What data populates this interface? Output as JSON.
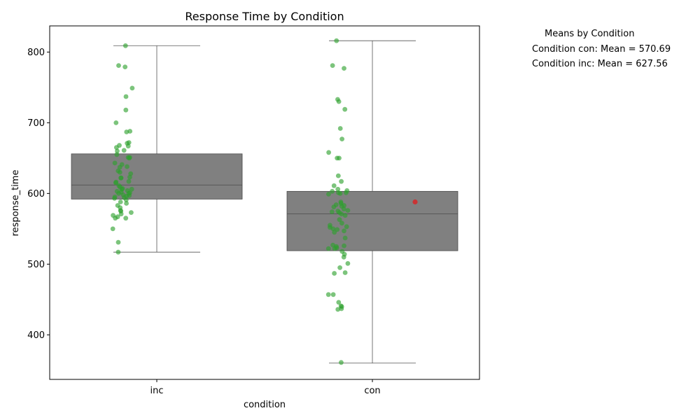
{
  "chart_data": {
    "type": "box",
    "title": "Response Time by Condition",
    "xlabel": "condition",
    "ylabel": "response_time",
    "categories": [
      "inc",
      "con"
    ],
    "ylim": [
      337,
      837
    ],
    "yticks": [
      400,
      500,
      600,
      700,
      800
    ],
    "grid": false,
    "boxes": [
      {
        "category": "inc",
        "q1": 592,
        "median": 612,
        "q3": 656,
        "whisker_low": 517,
        "whisker_high": 809
      },
      {
        "category": "con",
        "q1": 519,
        "median": 571,
        "q3": 603,
        "whisker_low": 360,
        "whisker_high": 816
      }
    ],
    "points": [
      {
        "category": "inc",
        "values": [
          809,
          781,
          779,
          749,
          737,
          718,
          700,
          688,
          687,
          672,
          671,
          668,
          667,
          665,
          661,
          660,
          655,
          651,
          651,
          650,
          643,
          641,
          638,
          637,
          632,
          630,
          628,
          623,
          622,
          622,
          617,
          616,
          615,
          611,
          609,
          607,
          606,
          606,
          604,
          603,
          602,
          601,
          600,
          600,
          598,
          597,
          596,
          595,
          594,
          593,
          591,
          588,
          586,
          583,
          580,
          576,
          575,
          573,
          571,
          569,
          567,
          565,
          565,
          550,
          531,
          517
        ]
      },
      {
        "category": "con",
        "values": [
          816,
          781,
          777,
          733,
          730,
          719,
          692,
          677,
          658,
          650,
          650,
          625,
          617,
          611,
          606,
          604,
          603,
          601,
          601,
          600,
          599,
          588,
          586,
          584,
          583,
          582,
          581,
          578,
          576,
          575,
          574,
          573,
          571,
          569,
          563,
          558,
          555,
          553,
          552,
          550,
          549,
          547,
          545,
          537,
          527,
          526,
          525,
          523,
          522,
          522,
          518,
          514,
          510,
          501,
          495,
          488,
          487,
          457,
          457,
          446,
          441,
          440,
          437,
          436,
          361
        ]
      }
    ],
    "highlight": {
      "category": "con",
      "value": 588,
      "color": "#d62728"
    },
    "colors": {
      "box": "#808080",
      "points": "#2ca02c",
      "frame": "#000000"
    },
    "legend": {
      "placement": "outside-right",
      "title": "Means by Condition",
      "entries": [
        "Condition con: Mean = 570.69",
        "Condition inc: Mean = 627.56"
      ]
    }
  }
}
